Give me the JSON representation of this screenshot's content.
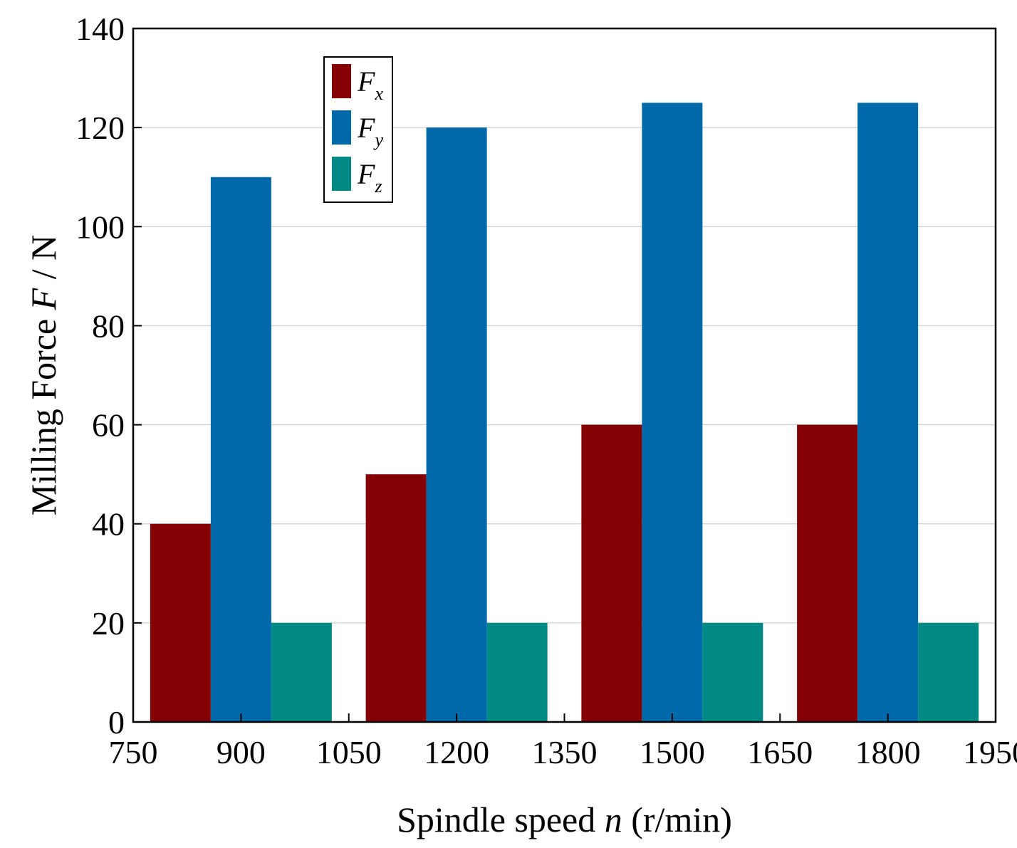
{
  "chart_data": {
    "type": "bar",
    "categories": [
      "900",
      "1200",
      "1500",
      "1800"
    ],
    "x_values": [
      900,
      1200,
      1500,
      1800
    ],
    "x_ticks": [
      "750",
      "900",
      "1050",
      "1200",
      "1350",
      "1500",
      "1650",
      "1800",
      "1950"
    ],
    "xlim": [
      750,
      1950
    ],
    "ylim": [
      0,
      140
    ],
    "y_ticks": [
      "0",
      "20",
      "40",
      "60",
      "80",
      "100",
      "120",
      "140"
    ],
    "xlabel_parts": [
      "Spindle speed ",
      "n",
      " (r/min)"
    ],
    "ylabel_parts": [
      "Milling Force ",
      "F",
      " / N"
    ],
    "grid": "horizontal",
    "legend_position": "top-left",
    "series": [
      {
        "name": "F",
        "subscript": "x",
        "color": "#850003",
        "values": [
          40,
          50,
          60,
          60
        ]
      },
      {
        "name": "F",
        "subscript": "y",
        "color": "#0069AA",
        "values": [
          110,
          120,
          125,
          125
        ]
      },
      {
        "name": "F",
        "subscript": "z",
        "color": "#008985",
        "values": [
          20,
          20,
          20,
          20
        ]
      }
    ]
  }
}
